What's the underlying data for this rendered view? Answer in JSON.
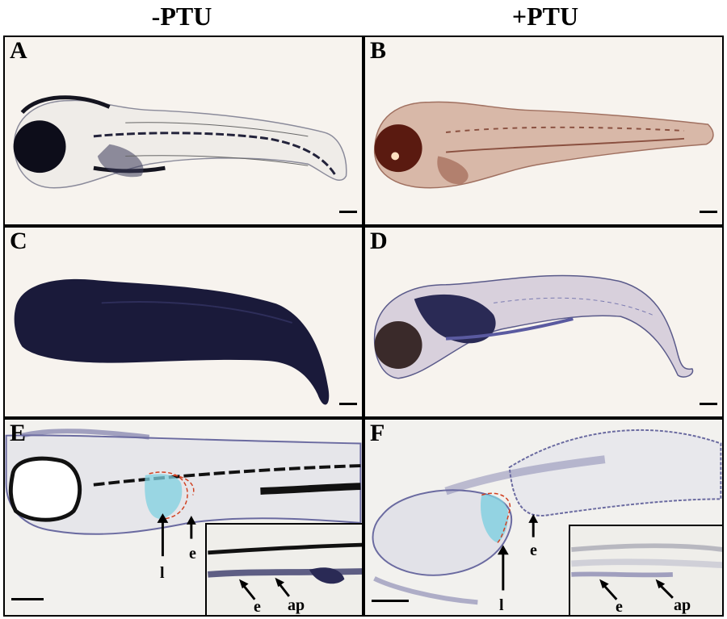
{
  "columns": {
    "left": "-PTU",
    "right": "+PTU"
  },
  "panels": {
    "A": {
      "letter": "A",
      "condition": "-PTU"
    },
    "B": {
      "letter": "B",
      "condition": "+PTU"
    },
    "C": {
      "letter": "C",
      "condition": "-PTU"
    },
    "D": {
      "letter": "D",
      "condition": "+PTU"
    },
    "E": {
      "letter": "E",
      "condition": "-PTU",
      "labels": {
        "l": "l",
        "e": "e"
      },
      "inset_labels": {
        "e": "e",
        "ap": "ap"
      }
    },
    "F": {
      "letter": "F",
      "condition": "+PTU",
      "labels": {
        "l": "l",
        "e": "e"
      },
      "inset_labels": {
        "e": "e",
        "ap": "ap"
      }
    }
  },
  "colors": {
    "background": "#f7f3ee",
    "pigment": "#14141f",
    "stain_dark": "#1a1a3a",
    "stain_light": "#6a6aa0",
    "ptu_tissue": "#b07060",
    "liver_cyan": "#7fd0e0",
    "outline_red": "#d04020",
    "border": "#000000"
  }
}
